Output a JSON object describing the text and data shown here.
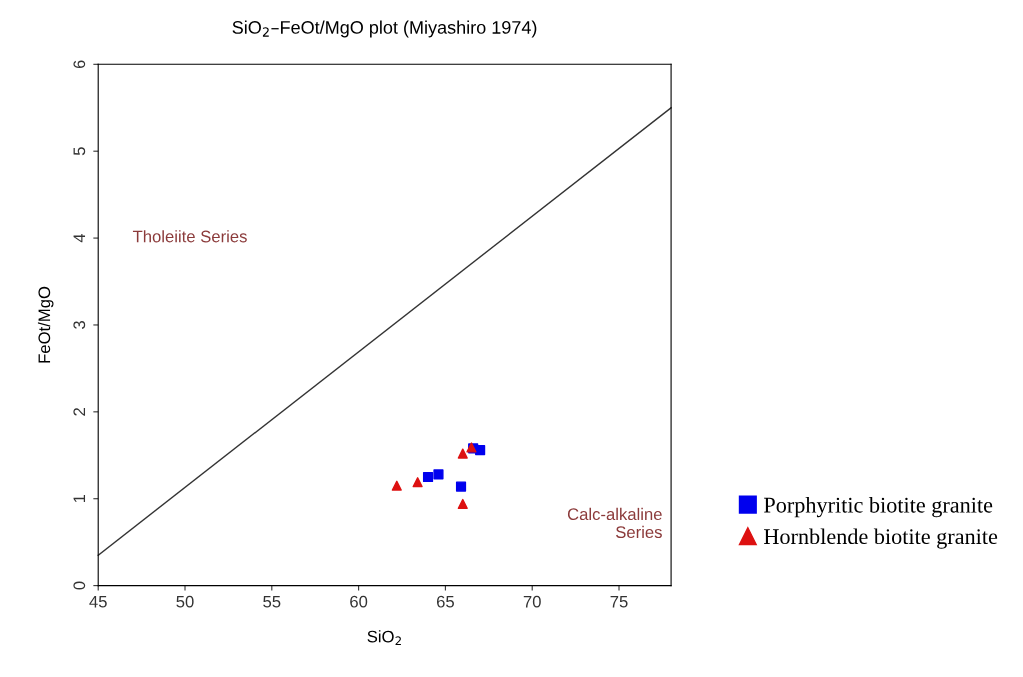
{
  "chart_data": {
    "type": "scatter",
    "title": "SiO$_{2}$–FeOt/MgO plot (Miyashiro 1974)",
    "xlabel": "SiO$_{2}$",
    "ylabel": "FeOt/MgO",
    "xlim": [
      45,
      78
    ],
    "ylim": [
      0,
      6
    ],
    "xticks": [
      45,
      50,
      55,
      60,
      65,
      70,
      75
    ],
    "yticks": [
      0,
      1,
      2,
      3,
      4,
      5,
      6
    ],
    "grid": false,
    "legend": "bottom right",
    "series": [
      {
        "type": "line",
        "x": [
          45,
          78
        ],
        "values": [
          0.35,
          5.5
        ],
        "color": "#333333",
        "marker": "none",
        "line_style": "solid"
      },
      {
        "name": "Porphyritic biotite granite",
        "color": "#0000ee",
        "marker": "square",
        "x": [
          64.0,
          64.6,
          65.9,
          66.6,
          67.0
        ],
        "values": [
          1.25,
          1.28,
          1.14,
          1.58,
          1.56
        ]
      },
      {
        "name": "Hornblende biotite granite",
        "color": "#dd1111",
        "marker": "triangle",
        "x": [
          62.2,
          63.4,
          66.0,
          66.0,
          66.5
        ],
        "values": [
          1.15,
          1.19,
          1.52,
          0.94,
          1.59
        ]
      }
    ],
    "annotations": [
      "Tholeiite Series",
      "Calc-alkaline\nSeries"
    ]
  }
}
